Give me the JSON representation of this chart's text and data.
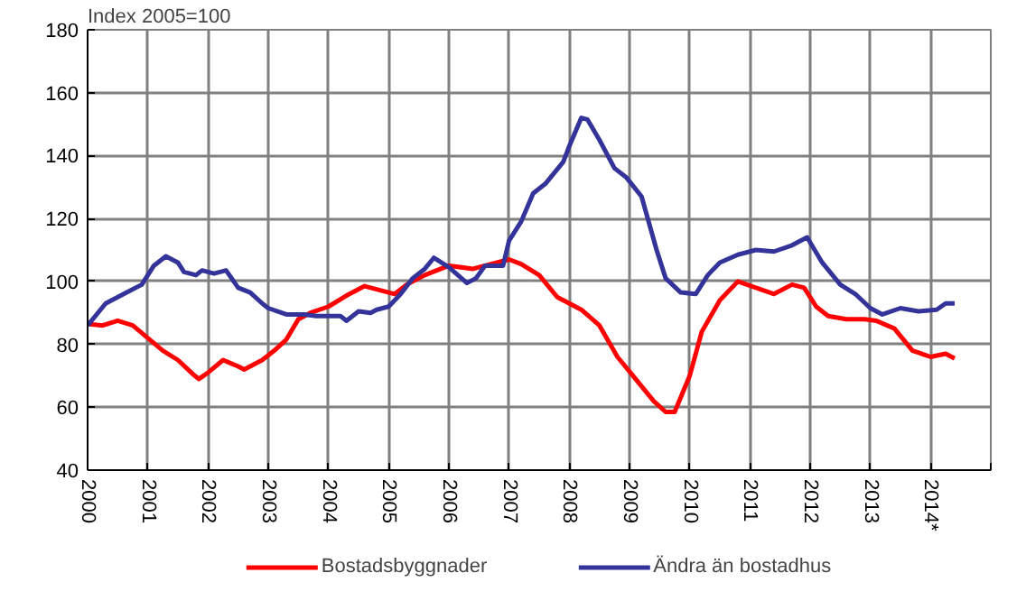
{
  "chart_data": {
    "type": "line",
    "ylabel": "Index  2005=100",
    "xlim": [
      2000,
      2015
    ],
    "ylim": [
      40,
      180
    ],
    "xticks": [
      2000,
      2001,
      2002,
      2003,
      2004,
      2005,
      2006,
      2007,
      2008,
      2009,
      2010,
      2011,
      2012,
      2013,
      {
        "value": 2014,
        "label": "2014*"
      },
      {
        "value": 2015,
        "label": null
      }
    ],
    "yticks": [
      40,
      60,
      80,
      100,
      120,
      140,
      160,
      180
    ],
    "grid": true,
    "legend": "bottom",
    "line_style": "solid",
    "marker": "none",
    "series": [
      {
        "name": "Bostadsbyggnader",
        "color": "#ff0000",
        "x": [
          2000,
          2000.25,
          2000.5,
          2000.75,
          2001,
          2001.25,
          2001.5,
          2001.75,
          2001.85,
          2002,
          2002.25,
          2002.5,
          2002.6,
          2002.9,
          2003.1,
          2003.3,
          2003.5,
          2003.7,
          2004,
          2004.3,
          2004.6,
          2004.9,
          2005.1,
          2005.3,
          2005.6,
          2006,
          2006.4,
          2006.6,
          2007,
          2007.2,
          2007.5,
          2007.8,
          2008.2,
          2008.5,
          2008.8,
          2009.1,
          2009.4,
          2009.6,
          2009.75,
          2010,
          2010.2,
          2010.5,
          2010.8,
          2011.1,
          2011.4,
          2011.7,
          2011.9,
          2012.1,
          2012.3,
          2012.6,
          2012.9,
          2013.1,
          2013.4,
          2013.7,
          2014,
          2014.25,
          2014.4
        ],
        "values": [
          86.5,
          86,
          87.5,
          86,
          82,
          78,
          75,
          70.5,
          69,
          71,
          75,
          73,
          72,
          75,
          78,
          81.5,
          88,
          90,
          92,
          95.5,
          98.5,
          97,
          96,
          99,
          102,
          105,
          104,
          105,
          107,
          105.5,
          102,
          95,
          91,
          86,
          76,
          69,
          62,
          58.5,
          58.5,
          70,
          84,
          94,
          100,
          98,
          96,
          99,
          98,
          92,
          89,
          88,
          88,
          87.5,
          85,
          78,
          76,
          77,
          75.5
        ]
      },
      {
        "name": "Ändra än bostadhus",
        "color": "#333399",
        "x": [
          2000,
          2000.3,
          2000.6,
          2000.9,
          2001.1,
          2001.3,
          2001.5,
          2001.6,
          2001.8,
          2001.9,
          2002.1,
          2002.3,
          2002.5,
          2002.7,
          2002.9,
          2003,
          2003.3,
          2003.6,
          2003.8,
          2004,
          2004.2,
          2004.3,
          2004.5,
          2004.7,
          2004.8,
          2005,
          2005.2,
          2005.4,
          2005.6,
          2005.75,
          2006,
          2006.3,
          2006.45,
          2006.6,
          2006.9,
          2007,
          2007.2,
          2007.4,
          2007.6,
          2007.9,
          2008,
          2008.2,
          2008.3,
          2008.5,
          2008.75,
          2008.95,
          2009.2,
          2009.45,
          2009.6,
          2009.85,
          2010.1,
          2010.3,
          2010.5,
          2010.8,
          2011.1,
          2011.4,
          2011.7,
          2011.95,
          2012.2,
          2012.5,
          2012.75,
          2013,
          2013.2,
          2013.5,
          2013.8,
          2014.1,
          2014.25,
          2014.4
        ],
        "values": [
          86,
          93,
          96,
          99,
          105,
          108,
          106,
          103,
          102,
          103.5,
          102.5,
          103.5,
          98,
          96.5,
          93,
          91.5,
          89.5,
          89.5,
          89,
          89,
          89,
          87.5,
          90.5,
          90,
          91,
          92,
          96,
          101,
          104,
          107.5,
          104.5,
          99.5,
          101,
          105,
          105,
          113,
          119,
          128,
          131,
          138,
          143,
          152,
          151.5,
          145,
          136,
          133,
          127,
          110,
          101,
          96.5,
          96,
          102,
          106,
          108.5,
          110,
          109.5,
          111.5,
          114,
          106,
          99,
          96,
          91.5,
          89.5,
          91.5,
          90.5,
          91,
          93,
          93
        ]
      }
    ]
  }
}
